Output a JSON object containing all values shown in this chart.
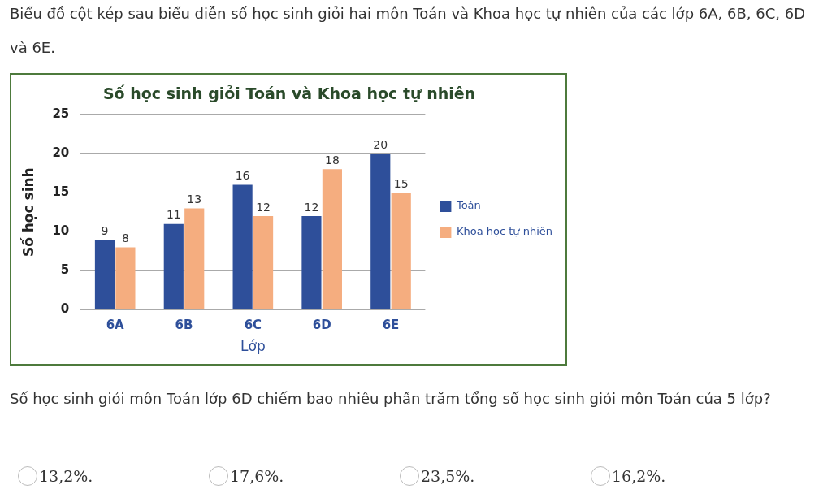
{
  "chart_data": {
    "type": "bar",
    "title": "Số học sinh giỏi Toán và Khoa học tự nhiên",
    "xlabel": "Lớp",
    "ylabel": "Số học sinh",
    "categories": [
      "6A",
      "6B",
      "6C",
      "6D",
      "6E"
    ],
    "series": [
      {
        "name": "Toán",
        "color": "#2e4f9a",
        "values": [
          9,
          11,
          16,
          12,
          20
        ]
      },
      {
        "name": "Khoa học tự nhiên",
        "color": "#f5ad7f",
        "values": [
          8,
          13,
          12,
          18,
          15
        ]
      }
    ],
    "ylim": [
      0,
      25
    ],
    "yticks": [
      0,
      5,
      10,
      15,
      20,
      25
    ],
    "grid": "y",
    "legend": "right",
    "data_labels": true,
    "annotations": [
      "Biểu đồ cột kép sau biểu diễn số học sinh giỏi hai môn Toán và Khoa học tự nhiên của các lớp 6A, 6B, 6C, 6D và 6E.",
      "Số học sinh giỏi môn Toán lớp 6D chiếm bao nhiêu phần trăm tổng số học sinh giỏi môn Toán của 5 lớp?",
      "13,2%.",
      "17,6%.",
      "23,5%.",
      "16,2%."
    ]
  }
}
